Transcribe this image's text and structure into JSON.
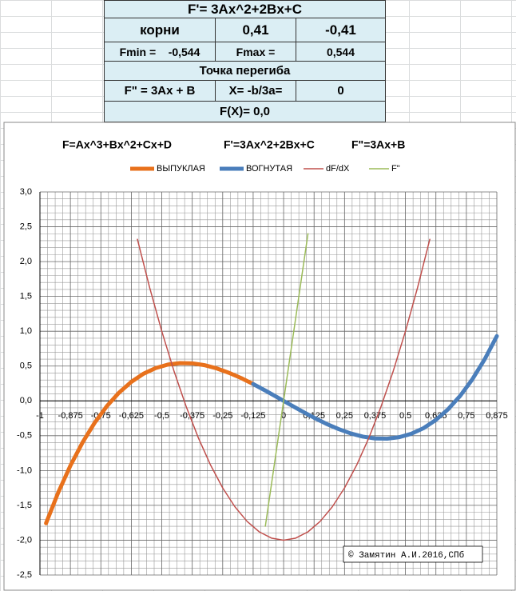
{
  "table": {
    "title": "F'= 3Ax^2+2Bx+C",
    "rows": [
      [
        "корни",
        "0,41",
        "-0,41"
      ],
      [
        "Fmin =",
        "-0,544",
        "Fmax =",
        "0,544"
      ],
      [
        "Точка перегиба"
      ],
      [
        "F\" = 3Ax + B",
        "X= -b/3a=",
        "0"
      ],
      [
        "F(X)= 0,0"
      ]
    ]
  },
  "chart_data": {
    "type": "line",
    "titles": [
      "F=Ax^3+Bx^2+Cx+D",
      "F'=3Ax^2+2Bx+C",
      "F\"=3Ax+B"
    ],
    "annotation": "© Замятин А.И.2016,СПб",
    "xlim": [
      -1,
      0.875
    ],
    "ylim": [
      -2.5,
      3
    ],
    "xticks": [
      -1,
      {
        "value": -0.875,
        "label": "-0,875"
      },
      {
        "value": -0.75,
        "label": "-0,75"
      },
      {
        "value": -0.625,
        "label": "-0,625"
      },
      {
        "value": -0.5,
        "label": "-0,5"
      },
      {
        "value": -0.375,
        "label": "-0,375"
      },
      {
        "value": -0.25,
        "label": "-0,25"
      },
      {
        "value": -0.125,
        "label": "-0,125"
      },
      0,
      {
        "value": 0.125,
        "label": "0,125"
      },
      {
        "value": 0.25,
        "label": "0,25"
      },
      {
        "value": 0.375,
        "label": "0,375"
      },
      {
        "value": 0.5,
        "label": "0,5"
      },
      {
        "value": 0.625,
        "label": "0,625"
      },
      {
        "value": 0.75,
        "label": "0,75"
      },
      {
        "value": 0.875,
        "label": "0,875"
      }
    ],
    "yticks": [
      {
        "value": 3,
        "label": "3,0"
      },
      {
        "value": 2.5,
        "label": "2,5"
      },
      {
        "value": 2,
        "label": "2,0"
      },
      {
        "value": 1.5,
        "label": "1,5"
      },
      {
        "value": 1,
        "label": "1,0"
      },
      {
        "value": 0.5,
        "label": "0,5"
      },
      {
        "value": 0,
        "label": "0,0"
      },
      {
        "value": -0.5,
        "label": "-0,5"
      },
      {
        "value": -1,
        "label": "-1,0"
      },
      {
        "value": -1.5,
        "label": "-1,5"
      },
      {
        "value": -2,
        "label": "-2,0"
      },
      {
        "value": -2.5,
        "label": "-2,5"
      }
    ],
    "grid": true,
    "series": [
      {
        "name": "ВЫПУКЛАЯ",
        "color": "#e8711c",
        "line_width": 5,
        "x": [
          -0.975,
          -0.925,
          -0.875,
          -0.825,
          -0.775,
          -0.725,
          -0.675,
          -0.625,
          -0.575,
          -0.525,
          -0.475,
          -0.425,
          -0.375,
          -0.325,
          -0.275,
          -0.225,
          -0.175,
          -0.125
        ],
        "values": [
          -1.757,
          -1.316,
          -0.93,
          -0.596,
          -0.312,
          -0.074,
          0.12,
          0.273,
          0.39,
          0.471,
          0.521,
          0.543,
          0.539,
          0.513,
          0.467,
          0.404,
          0.329,
          0.242
        ]
      },
      {
        "name": "ВОГНУТАЯ",
        "color": "#4a7ebb",
        "line_width": 5,
        "x": [
          -0.125,
          -0.075,
          -0.025,
          0.025,
          0.075,
          0.125,
          0.175,
          0.225,
          0.275,
          0.325,
          0.375,
          0.425,
          0.475,
          0.525,
          0.575,
          0.625,
          0.675,
          0.725,
          0.775,
          0.825,
          0.875
        ],
        "values": [
          0.242,
          0.148,
          0.05,
          -0.05,
          -0.148,
          -0.242,
          -0.329,
          -0.404,
          -0.467,
          -0.513,
          -0.539,
          -0.543,
          -0.521,
          -0.471,
          -0.39,
          -0.273,
          -0.12,
          0.074,
          0.312,
          0.596,
          0.93
        ]
      },
      {
        "name": "dF/dX",
        "color": "#c0504d",
        "line_width": 1.5,
        "x": [
          -0.6,
          -0.55,
          -0.5,
          -0.45,
          -0.4,
          -0.35,
          -0.3,
          -0.25,
          -0.2,
          -0.15,
          -0.1,
          -0.05,
          0,
          0.05,
          0.1,
          0.15,
          0.2,
          0.25,
          0.3,
          0.35,
          0.4,
          0.45,
          0.5,
          0.55,
          0.6
        ],
        "values": [
          2.32,
          1.63,
          1.0,
          0.43,
          -0.08,
          -0.53,
          -0.92,
          -1.25,
          -1.52,
          -1.73,
          -1.88,
          -1.97,
          -2,
          -1.97,
          -1.88,
          -1.73,
          -1.52,
          -1.25,
          -0.92,
          -0.53,
          -0.08,
          0.43,
          1.0,
          1.63,
          2.32
        ]
      },
      {
        "name": "F\"",
        "color": "#9bbb59",
        "line_width": 1.5,
        "x": [
          -0.075,
          0.1
        ],
        "values": [
          -1.8,
          2.4
        ]
      }
    ]
  }
}
